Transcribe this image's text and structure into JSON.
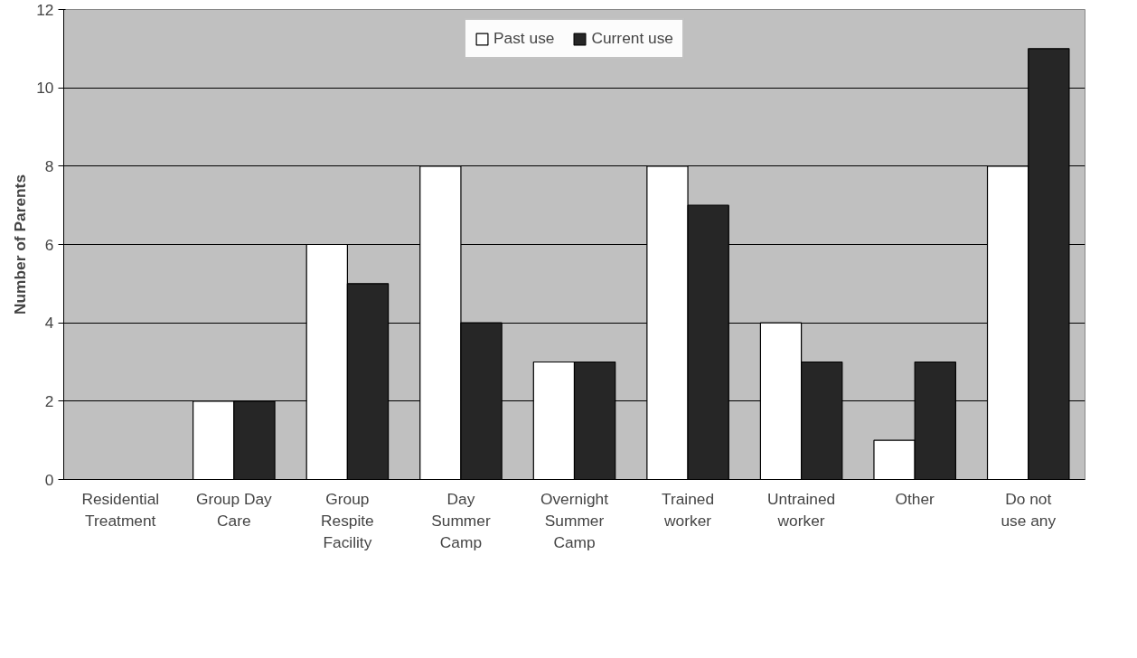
{
  "chart_data": {
    "type": "bar",
    "ylabel": "Number of Parents",
    "categories": [
      "Residential Treatment",
      "Group Day Care",
      "Group Respite Facility",
      "Day Summer Camp",
      "Overnight Summer Camp",
      "Trained worker",
      "Untrained worker",
      "Other",
      "Do not use any"
    ],
    "series": [
      {
        "name": "Past use",
        "color": "#ffffff",
        "values": [
          0,
          2,
          6,
          8,
          3,
          8,
          4,
          1,
          8
        ]
      },
      {
        "name": "Current use",
        "color": "#262626",
        "values": [
          0,
          2,
          5,
          4,
          3,
          7,
          3,
          3,
          11
        ]
      }
    ],
    "ylim": [
      0,
      12
    ],
    "yticks": [
      0,
      2,
      4,
      6,
      8,
      10,
      12
    ],
    "grid": "y",
    "legend": "top"
  }
}
